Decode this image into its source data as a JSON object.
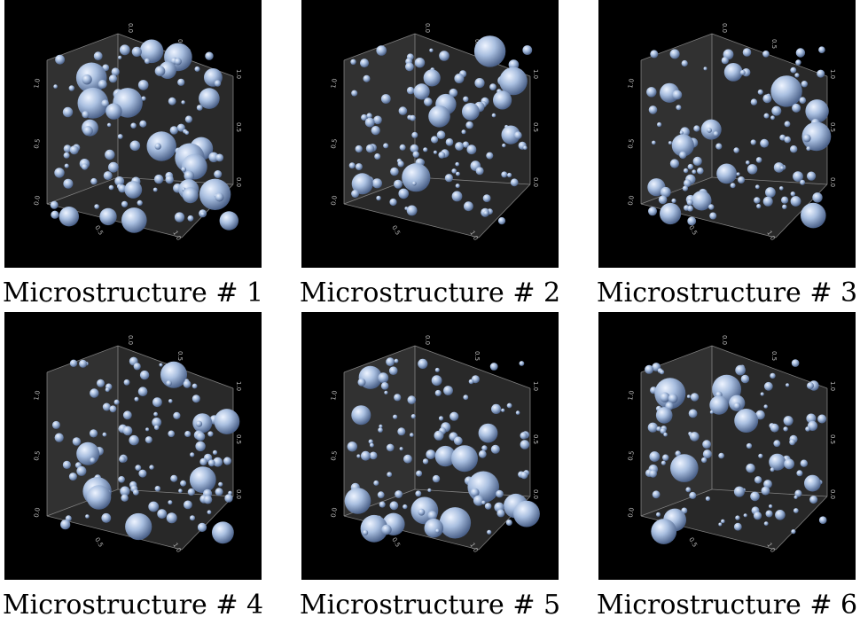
{
  "figure": {
    "panels": [
      {
        "caption": "Microstructure # 1",
        "seed": 11
      },
      {
        "caption": "Microstructure # 2",
        "seed": 23
      },
      {
        "caption": "Microstructure # 3",
        "seed": 37
      },
      {
        "caption": "Microstructure # 4",
        "seed": 41
      },
      {
        "caption": "Microstructure # 5",
        "seed": 53
      },
      {
        "caption": "Microstructure # 6",
        "seed": 67
      }
    ],
    "axis_ticks": {
      "top_left": "0.0",
      "top_mid": "0.5",
      "right": [
        "1.0",
        "0.5",
        "0.0"
      ],
      "left": [
        "1.0",
        "0.5",
        "0.0"
      ],
      "bottom": [
        "0.0",
        "0.5",
        "1.0"
      ]
    },
    "colors": {
      "background": "#000000",
      "wall": "#3a3a3a",
      "floor": "#2c2c2c",
      "edge": "#9a9a9a",
      "sphere_light": "#eef4ff",
      "sphere_mid": "#a9bfe0",
      "sphere_dark": "#4a6088"
    }
  }
}
